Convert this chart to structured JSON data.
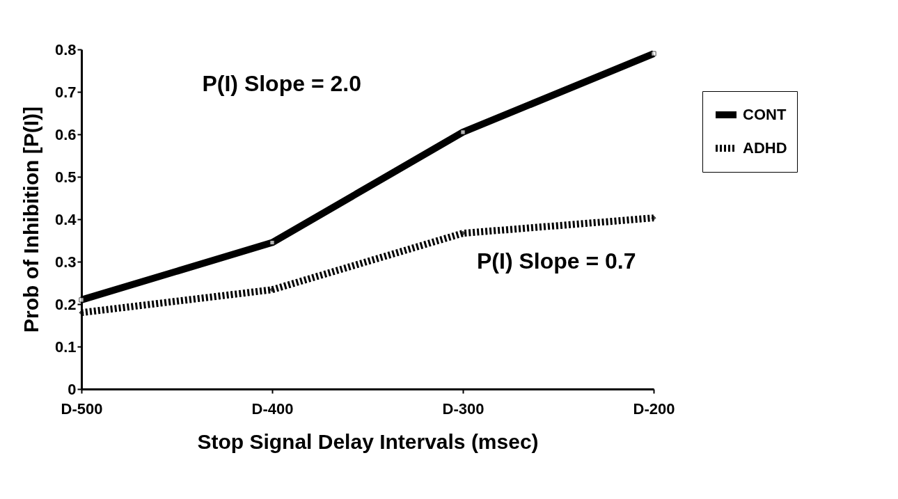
{
  "chart_data": {
    "type": "line",
    "xlabel": "Stop Signal Delay Intervals (msec)",
    "ylabel": "Prob of Inhibition [P(I)]",
    "categories": [
      "D-500",
      "D-400",
      "D-300",
      "D-200"
    ],
    "series": [
      {
        "name": "CONT",
        "color": "#000000",
        "values": [
          0.21,
          0.345,
          0.605,
          0.79
        ],
        "marker": "square",
        "line_style": "solid"
      },
      {
        "name": "ADHD",
        "color": "#000000",
        "values": [
          0.18,
          0.234,
          0.367,
          0.403
        ],
        "marker": "diamond",
        "line_style": "dotted"
      }
    ],
    "ylim": [
      0,
      0.8
    ],
    "yticks": [
      0,
      0.1,
      0.2,
      0.3,
      0.4,
      0.5,
      0.6,
      0.7,
      0.8
    ],
    "grid": false,
    "legend": "right",
    "annotations": [
      "P(I) Slope = 2.0",
      "P(I) Slope = 0.7"
    ]
  }
}
